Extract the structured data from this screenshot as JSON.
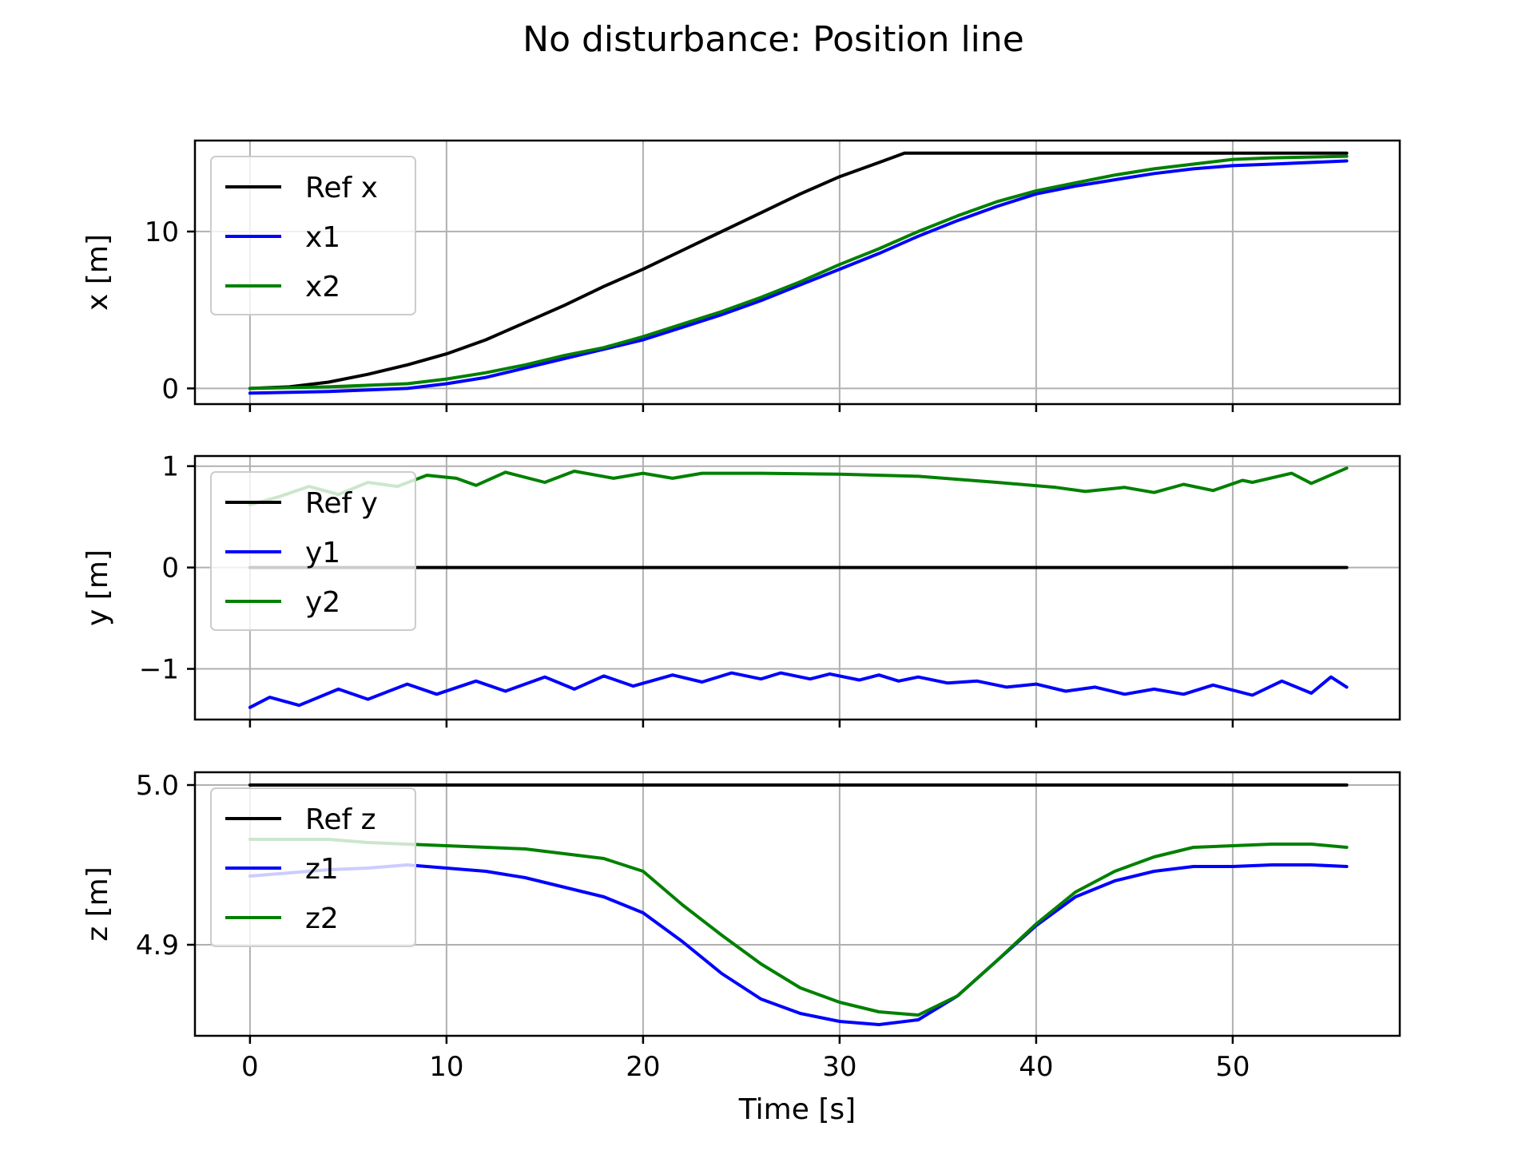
{
  "figure": {
    "title": "No disturbance: Position line"
  },
  "chart_data": [
    {
      "type": "line",
      "ylabel": "x [m]",
      "xlabel": "",
      "xlim": [
        -2.8,
        58.5
      ],
      "ylim": [
        -1.0,
        15.8
      ],
      "grid": true,
      "legend_position": "upper-left",
      "xticks": [
        0,
        10,
        20,
        30,
        40,
        50
      ],
      "xtick_labels": [
        "",
        "",
        "",
        "",
        "",
        ""
      ],
      "yticks": [
        0,
        10
      ],
      "ytick_labels": [
        "0",
        "10"
      ],
      "series": [
        {
          "name": "Ref x",
          "color": "#000000",
          "x": [
            0,
            2,
            4,
            6,
            8,
            10,
            12,
            14,
            16,
            18,
            20,
            22,
            24,
            26,
            28,
            30,
            32,
            33.3,
            36,
            40,
            45,
            50,
            55.8
          ],
          "y": [
            0,
            0.1,
            0.4,
            0.9,
            1.5,
            2.2,
            3.1,
            4.2,
            5.3,
            6.5,
            7.6,
            8.8,
            10.0,
            11.2,
            12.4,
            13.5,
            14.4,
            15.0,
            15.0,
            15.0,
            15.0,
            15.0,
            15.0
          ]
        },
        {
          "name": "x1",
          "color": "#0000ff",
          "x": [
            0,
            4,
            8,
            10,
            12,
            14,
            16,
            18,
            20,
            22,
            24,
            26,
            28,
            30,
            32,
            34,
            36,
            38,
            40,
            42,
            44,
            46,
            48,
            50,
            52,
            55.8
          ],
          "y": [
            -0.3,
            -0.2,
            0,
            0.3,
            0.7,
            1.3,
            1.9,
            2.5,
            3.1,
            3.9,
            4.7,
            5.6,
            6.6,
            7.6,
            8.6,
            9.7,
            10.7,
            11.6,
            12.4,
            12.9,
            13.3,
            13.7,
            14.0,
            14.2,
            14.3,
            14.5
          ]
        },
        {
          "name": "x2",
          "color": "#008000",
          "x": [
            0,
            4,
            8,
            10,
            12,
            14,
            16,
            18,
            20,
            22,
            24,
            26,
            28,
            30,
            32,
            34,
            36,
            38,
            40,
            42,
            44,
            46,
            48,
            50,
            52,
            55.8
          ],
          "y": [
            0,
            0.1,
            0.3,
            0.6,
            1.0,
            1.5,
            2.1,
            2.6,
            3.3,
            4.1,
            4.9,
            5.8,
            6.8,
            7.9,
            8.9,
            10.0,
            11.0,
            11.9,
            12.6,
            13.1,
            13.6,
            14.0,
            14.3,
            14.6,
            14.7,
            14.8
          ]
        }
      ]
    },
    {
      "type": "line",
      "ylabel": "y [m]",
      "xlabel": "",
      "xlim": [
        -2.8,
        58.5
      ],
      "ylim": [
        -1.5,
        1.1
      ],
      "grid": true,
      "legend_position": "upper-left",
      "xticks": [
        0,
        10,
        20,
        30,
        40,
        50
      ],
      "xtick_labels": [
        "",
        "",
        "",
        "",
        "",
        ""
      ],
      "yticks": [
        -1,
        0,
        1
      ],
      "ytick_labels": [
        "−1",
        "0",
        "1"
      ],
      "series": [
        {
          "name": "Ref y",
          "color": "#000000",
          "x": [
            0,
            55.8
          ],
          "y": [
            0,
            0
          ]
        },
        {
          "name": "y1",
          "color": "#0000ff",
          "x": [
            0,
            1,
            2.5,
            4.5,
            6,
            8,
            9.5,
            11.5,
            13,
            15,
            16.5,
            18,
            19.5,
            21.5,
            23,
            24.5,
            26,
            27,
            28.5,
            29.5,
            31,
            32,
            33,
            34,
            35.5,
            37,
            38.5,
            40,
            41.5,
            43,
            44.5,
            46,
            47.5,
            49,
            51,
            52.5,
            54,
            55,
            55.8
          ],
          "y": [
            -1.38,
            -1.28,
            -1.36,
            -1.2,
            -1.3,
            -1.15,
            -1.25,
            -1.12,
            -1.22,
            -1.08,
            -1.2,
            -1.07,
            -1.17,
            -1.06,
            -1.13,
            -1.04,
            -1.1,
            -1.04,
            -1.1,
            -1.05,
            -1.11,
            -1.06,
            -1.12,
            -1.08,
            -1.14,
            -1.12,
            -1.18,
            -1.15,
            -1.22,
            -1.18,
            -1.25,
            -1.2,
            -1.25,
            -1.16,
            -1.26,
            -1.12,
            -1.24,
            -1.08,
            -1.18
          ]
        },
        {
          "name": "y2",
          "color": "#008000",
          "x": [
            0,
            1.5,
            3,
            4.5,
            6,
            7.5,
            9,
            10.5,
            11.5,
            13,
            15,
            16.5,
            18.5,
            20,
            21.5,
            23,
            26,
            30,
            34,
            38,
            41,
            42.5,
            44.5,
            46,
            47.5,
            49,
            50.5,
            51,
            53,
            54,
            55.8
          ],
          "y": [
            0.62,
            0.7,
            0.8,
            0.72,
            0.84,
            0.8,
            0.91,
            0.88,
            0.81,
            0.94,
            0.84,
            0.95,
            0.88,
            0.93,
            0.88,
            0.93,
            0.93,
            0.92,
            0.9,
            0.84,
            0.79,
            0.75,
            0.79,
            0.74,
            0.82,
            0.76,
            0.86,
            0.84,
            0.93,
            0.83,
            0.98
          ]
        }
      ]
    },
    {
      "type": "line",
      "ylabel": "z [m]",
      "xlabel": "Time [s]",
      "xlim": [
        -2.8,
        58.5
      ],
      "ylim": [
        4.843,
        5.008
      ],
      "grid": true,
      "legend_position": "upper-left",
      "xticks": [
        0,
        10,
        20,
        30,
        40,
        50
      ],
      "xtick_labels": [
        "0",
        "10",
        "20",
        "30",
        "40",
        "50"
      ],
      "yticks": [
        4.9,
        5.0
      ],
      "ytick_labels": [
        "4.9",
        "5.0"
      ],
      "series": [
        {
          "name": "Ref z",
          "color": "#000000",
          "x": [
            0,
            55.8
          ],
          "y": [
            5.0,
            5.0
          ]
        },
        {
          "name": "z1",
          "color": "#0000ff",
          "x": [
            0,
            2,
            4,
            6,
            8,
            10,
            12,
            14,
            16,
            18,
            20,
            22,
            24,
            26,
            28,
            30,
            32,
            34,
            36,
            38,
            40,
            42,
            44,
            46,
            48,
            50,
            52,
            54,
            55.8
          ],
          "y": [
            4.943,
            4.945,
            4.947,
            4.948,
            4.95,
            4.948,
            4.946,
            4.942,
            4.936,
            4.93,
            4.92,
            4.902,
            4.882,
            4.866,
            4.857,
            4.852,
            4.85,
            4.853,
            4.868,
            4.89,
            4.912,
            4.93,
            4.94,
            4.946,
            4.949,
            4.949,
            4.95,
            4.95,
            4.949
          ]
        },
        {
          "name": "z2",
          "color": "#008000",
          "x": [
            0,
            2,
            4,
            6,
            8,
            10,
            12,
            14,
            16,
            18,
            20,
            22,
            24,
            26,
            28,
            30,
            32,
            34,
            36,
            38,
            40,
            42,
            44,
            46,
            48,
            50,
            52,
            54,
            55.8
          ],
          "y": [
            4.966,
            4.966,
            4.966,
            4.964,
            4.963,
            4.962,
            4.961,
            4.96,
            4.957,
            4.954,
            4.946,
            4.925,
            4.906,
            4.888,
            4.873,
            4.864,
            4.858,
            4.856,
            4.868,
            4.89,
            4.913,
            4.933,
            4.946,
            4.955,
            4.961,
            4.962,
            4.963,
            4.963,
            4.961
          ]
        }
      ]
    }
  ]
}
